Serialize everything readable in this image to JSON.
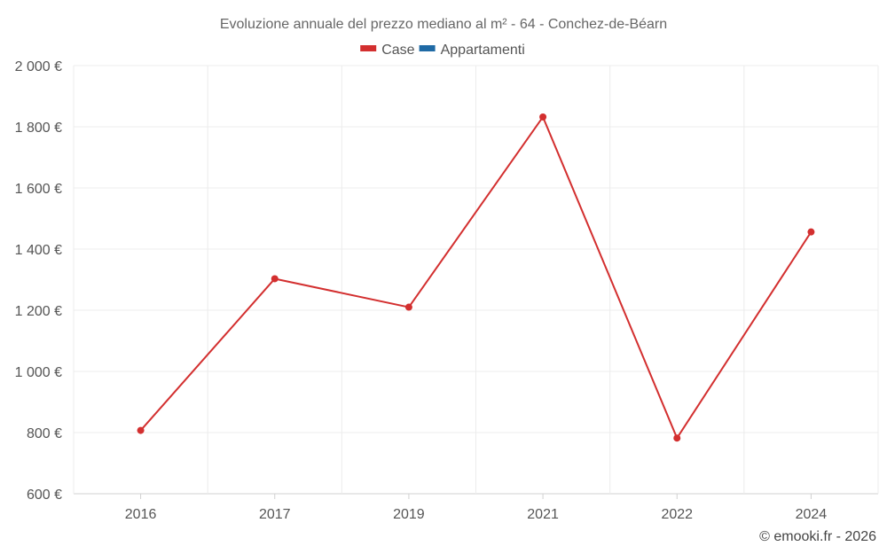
{
  "chart_data": {
    "type": "line",
    "title": "Evoluzione annuale del prezzo mediano al m² - 64 - Conchez-de-Béarn",
    "categories": [
      "2016",
      "2017",
      "2019",
      "2021",
      "2022",
      "2024"
    ],
    "series": [
      {
        "name": "Case",
        "color": "#d32f2f",
        "values": [
          807,
          1303,
          1210,
          1832,
          782,
          1456
        ]
      },
      {
        "name": "Appartamenti",
        "color": "#1f6aa5",
        "values": [
          null,
          null,
          null,
          null,
          null,
          null
        ]
      }
    ],
    "ylim": [
      600,
      2000
    ],
    "yticks": [
      600,
      800,
      1000,
      1200,
      1400,
      1600,
      1800,
      2000
    ],
    "ytick_labels": [
      "600 €",
      "800 €",
      "1 000 €",
      "1 200 €",
      "1 400 €",
      "1 600 €",
      "1 800 €",
      "2 000 €"
    ],
    "xlabel": "",
    "ylabel": "",
    "grid": true,
    "legend_position": "top-center"
  },
  "credit": "© emooki.fr - 2026"
}
